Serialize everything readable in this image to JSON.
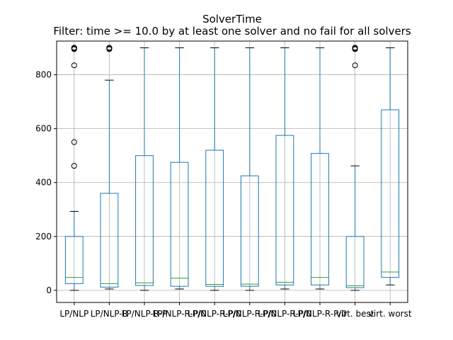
{
  "chart_data": {
    "type": "box",
    "title": "SolverTime",
    "subtitle": "Filter: time >= 10.0 by at least one solver and no fail for all solvers",
    "xlabel": "",
    "ylabel": "",
    "ylim": [
      -45,
      925
    ],
    "yticks": [
      0,
      200,
      400,
      600,
      800
    ],
    "grid": true,
    "colors": {
      "box": "#1f77b4",
      "median": "#2ca02c",
      "grid": "#b0b0b0"
    },
    "categories": [
      "LP/NLP",
      "LP/NLP-R",
      "LP/NLP-R-P",
      "LP/NLP-R-P/0",
      "LP/NLP-R-P/0",
      "LP/NLP-R-P/0",
      "LP/NLP-R-P/0",
      "LP/NLP-R-P/0",
      "virt. best",
      "virt. worst"
    ],
    "series": [
      {
        "whislo": 0,
        "q1": 25,
        "med": 48,
        "q3": 200,
        "whishi": 293,
        "fliers": [
          462,
          550,
          835,
          895,
          898,
          900,
          900
        ]
      },
      {
        "whislo": 5,
        "q1": 12,
        "med": 25,
        "q3": 360,
        "whishi": 780,
        "fliers": [
          895,
          898,
          900,
          900
        ]
      },
      {
        "whislo": 0,
        "q1": 18,
        "med": 28,
        "q3": 500,
        "whishi": 900,
        "fliers": []
      },
      {
        "whislo": 5,
        "q1": 15,
        "med": 45,
        "q3": 475,
        "whishi": 900,
        "fliers": []
      },
      {
        "whislo": 0,
        "q1": 15,
        "med": 22,
        "q3": 520,
        "whishi": 900,
        "fliers": []
      },
      {
        "whislo": 0,
        "q1": 15,
        "med": 23,
        "q3": 425,
        "whishi": 900,
        "fliers": []
      },
      {
        "whislo": 5,
        "q1": 20,
        "med": 30,
        "q3": 575,
        "whishi": 900,
        "fliers": []
      },
      {
        "whislo": 5,
        "q1": 20,
        "med": 48,
        "q3": 508,
        "whishi": 900,
        "fliers": []
      },
      {
        "whislo": 0,
        "q1": 10,
        "med": 17,
        "q3": 200,
        "whishi": 462,
        "fliers": [
          835,
          895,
          898,
          900,
          900
        ]
      },
      {
        "whislo": 20,
        "q1": 48,
        "med": 68,
        "q3": 670,
        "whishi": 900,
        "fliers": []
      }
    ]
  }
}
